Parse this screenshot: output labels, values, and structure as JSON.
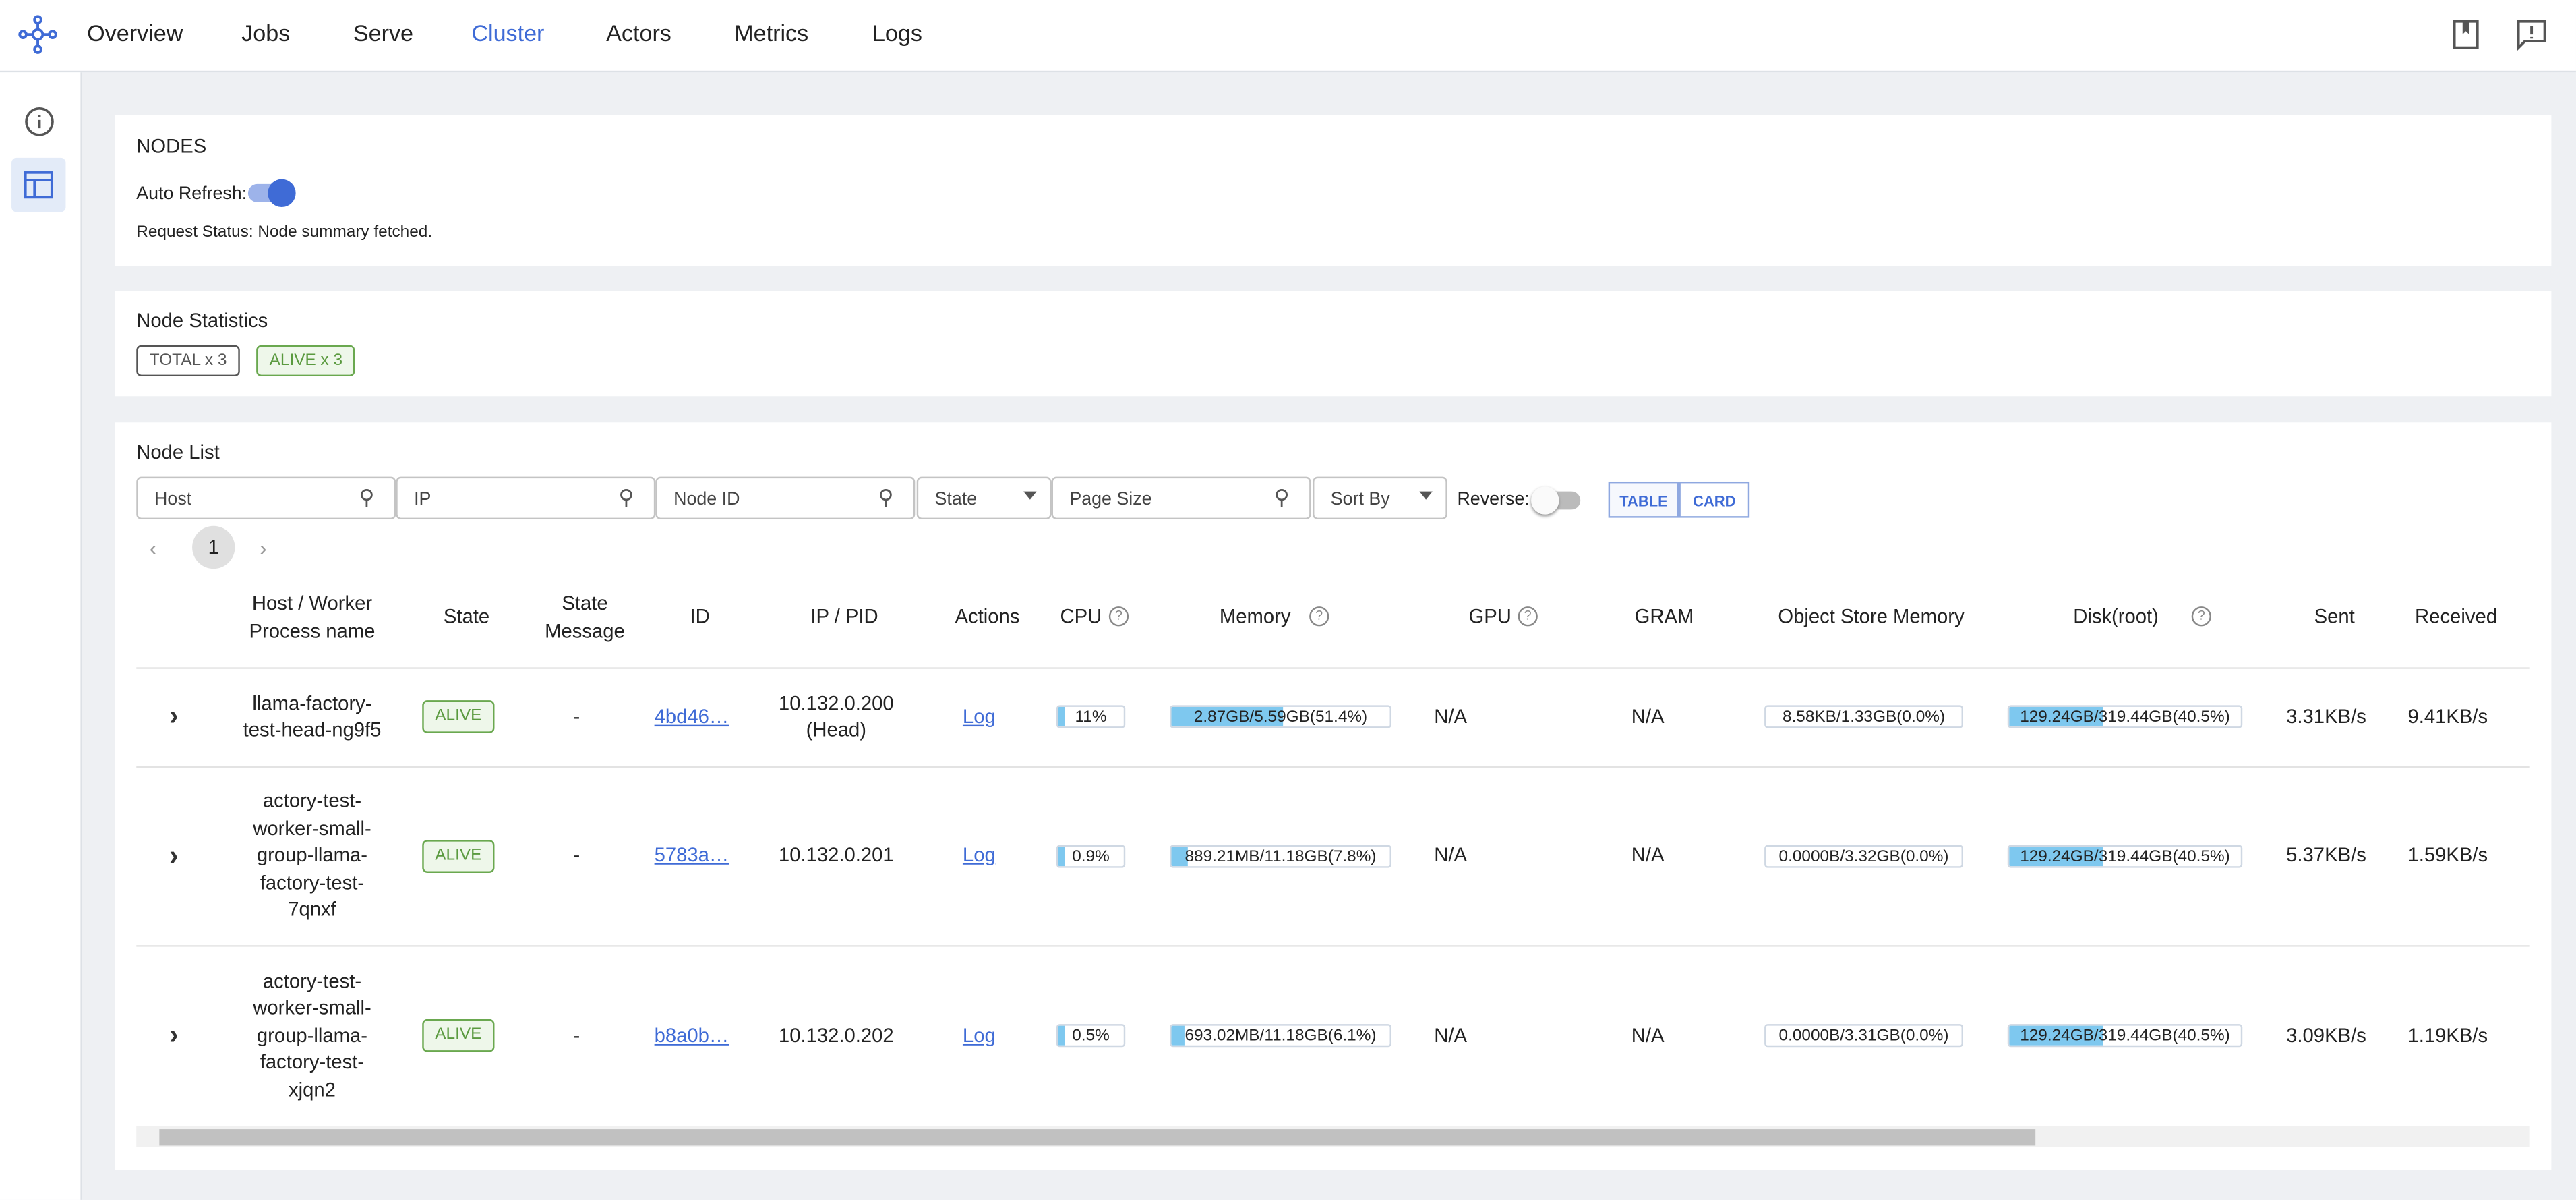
{
  "nav": {
    "items": [
      "Overview",
      "Jobs",
      "Serve",
      "Cluster",
      "Actors",
      "Metrics",
      "Logs"
    ],
    "active": 3
  },
  "nodes_panel": {
    "title": "NODES",
    "auto_refresh_label": "Auto Refresh:",
    "request_status": "Request Status: Node summary fetched."
  },
  "stats": {
    "title": "Node Statistics",
    "badges": [
      "TOTAL x 3",
      "ALIVE x 3"
    ]
  },
  "node_list": {
    "title": "Node List",
    "filters": [
      "Host",
      "IP",
      "Node ID",
      "State",
      "Page Size",
      "Sort By"
    ],
    "reverse_label": "Reverse:",
    "views": [
      "TABLE",
      "CARD"
    ],
    "page": "1",
    "columns": [
      "Host / Worker Process name",
      "State",
      "State Message",
      "ID",
      "IP / PID",
      "Actions",
      "CPU",
      "Memory",
      "GPU",
      "GRAM",
      "Object Store Memory",
      "Disk(root)",
      "Sent",
      "Received"
    ],
    "rows": [
      [
        "llama-factory-test-head-ng9f5",
        "ALIVE",
        "-",
        "4bd46…",
        "10.132.0.200 (Head)",
        "Log",
        "11%",
        "2.87GB/5.59GB(51.4%)",
        "N/A",
        "N/A",
        "8.58KB/1.33GB(0.0%)",
        "129.24GB/319.44GB(40.5%)",
        "3.31KB/s",
        "9.41KB/s"
      ],
      [
        "actory-test-worker-small-group-llama-factory-test-7qnxf",
        "ALIVE",
        "-",
        "5783a…",
        "10.132.0.201",
        "Log",
        "0.9%",
        "889.21MB/11.18GB(7.8%)",
        "N/A",
        "N/A",
        "0.0000B/3.32GB(0.0%)",
        "129.24GB/319.44GB(40.5%)",
        "5.37KB/s",
        "1.59KB/s"
      ],
      [
        "actory-test-worker-small-group-llama-factory-test-xjqn2",
        "ALIVE",
        "-",
        "b8a0b…",
        "10.132.0.202",
        "Log",
        "0.5%",
        "693.02MB/11.18GB(6.1%)",
        "N/A",
        "N/A",
        "0.0000B/3.31GB(0.0%)",
        "129.24GB/319.44GB(40.5%)",
        "3.09KB/s",
        "1.19KB/s"
      ]
    ]
  }
}
